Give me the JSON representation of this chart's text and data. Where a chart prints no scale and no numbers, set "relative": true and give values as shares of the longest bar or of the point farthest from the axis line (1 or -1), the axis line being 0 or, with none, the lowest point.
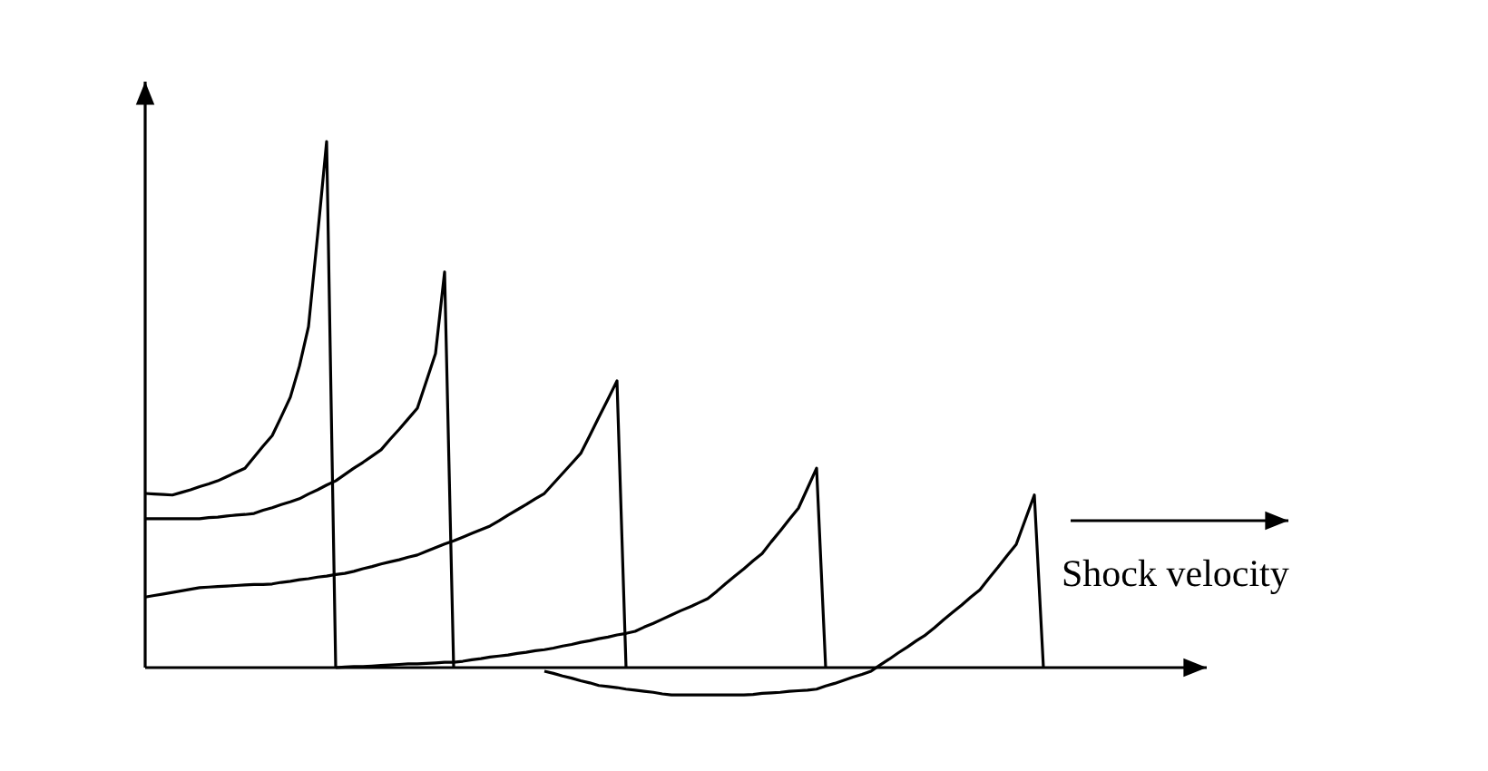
{
  "chart_data": {
    "type": "line",
    "relative": true,
    "xlabel": "Shock velocity",
    "line_style": "solid",
    "categories": [
      null,
      null,
      null,
      null,
      null,
      null,
      null,
      null,
      null,
      null,
      null,
      null,
      null,
      null,
      null,
      null,
      null,
      null,
      null,
      null,
      null,
      null,
      null,
      null,
      null,
      null,
      null,
      null,
      null,
      null,
      null,
      null,
      null,
      null,
      null,
      null,
      null,
      null,
      null,
      null,
      null,
      null,
      null,
      null,
      null,
      null,
      null,
      null,
      null,
      null,
      null,
      null,
      null,
      null,
      null,
      null,
      null,
      null,
      null,
      null,
      null,
      null,
      null,
      null,
      null,
      null,
      null,
      null,
      null,
      null,
      null,
      null,
      null,
      null,
      null,
      null,
      null,
      null,
      null,
      null,
      null,
      null,
      null,
      null,
      null,
      null,
      null,
      null,
      null,
      null,
      null,
      null,
      null,
      null,
      null,
      null,
      null,
      null,
      null,
      null,
      null,
      null,
      null,
      null,
      null,
      null,
      null,
      null,
      null,
      null,
      null,
      null,
      null,
      null,
      null,
      null,
      null,
      null
    ],
    "series": [
      {
        "color": "#000000",
        "values": [
          0.331,
          0.33,
          0.329,
          0.328,
          0.333,
          0.338,
          0.344,
          0.349,
          0.355,
          0.363,
          0.371,
          0.379,
          0.4,
          0.421,
          0.441,
          0.477,
          0.514,
          0.573,
          0.648,
          0.821,
          1.0,
          0,
          null,
          null,
          null,
          null,
          null,
          null,
          null,
          null,
          null,
          null,
          null,
          null,
          null,
          null,
          null,
          null,
          null,
          null,
          null,
          null,
          null,
          null,
          null,
          null,
          null,
          null,
          null,
          null,
          null,
          null,
          null,
          null,
          null,
          null,
          null,
          null,
          null,
          null,
          null,
          null,
          null,
          null,
          null,
          null,
          null,
          null,
          null,
          null,
          null,
          null,
          null,
          null,
          null,
          null,
          null,
          null,
          null,
          null,
          null,
          null,
          null,
          null,
          null,
          null,
          null,
          null,
          null,
          null,
          null,
          null,
          null,
          null,
          null,
          null,
          null,
          null,
          null,
          null,
          null,
          null,
          null,
          null,
          null,
          null,
          null,
          null,
          null,
          null,
          null,
          null,
          null,
          null,
          null,
          null,
          null,
          null
        ]
      },
      {
        "color": "#000000",
        "values": [
          0.283,
          0.283,
          0.283,
          0.283,
          0.283,
          0.283,
          0.283,
          0.285,
          0.286,
          0.288,
          0.29,
          0.291,
          0.293,
          0.299,
          0.304,
          0.31,
          0.315,
          0.321,
          0.33,
          0.338,
          0.347,
          0.355,
          0.367,
          0.379,
          0.39,
          0.402,
          0.414,
          0.434,
          0.453,
          0.473,
          0.493,
          0.545,
          0.597,
          0.752,
          0,
          null,
          null,
          null,
          null,
          null,
          null,
          null,
          null,
          null,
          null,
          null,
          null,
          null,
          null,
          null,
          null,
          null,
          null,
          null,
          null,
          null,
          null,
          null,
          null,
          null,
          null,
          null,
          null,
          null,
          null,
          null,
          null,
          null,
          null,
          null,
          null,
          null,
          null,
          null,
          null,
          null,
          null,
          null,
          null,
          null,
          null,
          null,
          null,
          null,
          null,
          null,
          null,
          null,
          null,
          null,
          null,
          null,
          null,
          null,
          null,
          null,
          null,
          null,
          null,
          null,
          null,
          null,
          null,
          null,
          null,
          null,
          null,
          null,
          null,
          null,
          null,
          null,
          null,
          null,
          null,
          null,
          null,
          null
        ]
      },
      {
        "color": "#000000",
        "values": [
          0.134,
          0.137,
          0.14,
          0.143,
          0.146,
          0.149,
          0.152,
          0.153,
          0.154,
          0.155,
          0.156,
          0.157,
          0.158,
          0.158,
          0.159,
          0.162,
          0.164,
          0.167,
          0.169,
          0.172,
          0.174,
          0.177,
          0.179,
          0.183,
          0.188,
          0.192,
          0.197,
          0.201,
          0.205,
          0.21,
          0.214,
          0.221,
          0.228,
          0.235,
          0.241,
          0.248,
          0.255,
          0.262,
          0.269,
          0.279,
          0.29,
          0.3,
          0.31,
          0.321,
          0.331,
          0.35,
          0.369,
          0.388,
          0.407,
          0.441,
          0.476,
          0.51,
          0.545,
          0,
          null,
          null,
          null,
          null,
          null,
          null,
          null,
          null,
          null,
          null,
          null,
          null,
          null,
          null,
          null,
          null,
          null,
          null,
          null,
          null,
          null,
          null,
          null,
          null,
          null,
          null,
          null,
          null,
          null,
          null,
          null,
          null,
          null,
          null,
          null,
          null,
          null,
          null,
          null,
          null,
          null,
          null,
          null,
          null,
          null,
          null,
          null,
          null,
          null,
          null,
          null,
          null,
          null,
          null,
          null,
          null,
          null,
          null,
          null,
          null,
          null,
          null,
          null,
          null
        ]
      },
      {
        "color": "#000000",
        "values": [
          null,
          null,
          null,
          null,
          null,
          null,
          null,
          null,
          null,
          null,
          null,
          null,
          null,
          null,
          null,
          null,
          null,
          null,
          null,
          null,
          null,
          0,
          0.001,
          0.002,
          0.002,
          0.003,
          0.004,
          0.005,
          0.006,
          0.007,
          0.007,
          0.008,
          0.009,
          0.01,
          0.01,
          0.012,
          0.015,
          0.017,
          0.02,
          0.022,
          0.024,
          0.027,
          0.029,
          0.032,
          0.034,
          0.037,
          0.041,
          0.044,
          0.048,
          0.051,
          0.055,
          0.058,
          0.062,
          0.065,
          0.069,
          0.077,
          0.084,
          0.092,
          0.1,
          0.108,
          0.115,
          0.123,
          0.131,
          0.145,
          0.16,
          0.174,
          0.188,
          0.203,
          0.217,
          0.239,
          0.26,
          0.282,
          0.303,
          0.341,
          0.379,
          0,
          null,
          null,
          null,
          null,
          null,
          null,
          null,
          null,
          null,
          null,
          null,
          null,
          null,
          null,
          null,
          null,
          null,
          null,
          null,
          null,
          null,
          null,
          null,
          null,
          null,
          null,
          null,
          null,
          null,
          null,
          null,
          null,
          null,
          null,
          null,
          null,
          null,
          null,
          null,
          null,
          null,
          null
        ]
      },
      {
        "color": "#000000",
        "values": [
          null,
          null,
          null,
          null,
          null,
          null,
          null,
          null,
          null,
          null,
          null,
          null,
          null,
          null,
          null,
          null,
          null,
          null,
          null,
          null,
          null,
          null,
          null,
          null,
          null,
          null,
          null,
          null,
          null,
          null,
          null,
          null,
          null,
          null,
          null,
          null,
          null,
          null,
          null,
          null,
          null,
          null,
          null,
          null,
          -0.007,
          -0.011,
          -0.016,
          -0.02,
          -0.025,
          -0.029,
          -0.034,
          -0.036,
          -0.038,
          -0.041,
          -0.043,
          -0.045,
          -0.047,
          -0.05,
          -0.052,
          -0.052,
          -0.052,
          -0.052,
          -0.052,
          -0.052,
          -0.052,
          -0.052,
          -0.052,
          -0.051,
          -0.049,
          -0.048,
          -0.047,
          -0.045,
          -0.044,
          -0.043,
          -0.041,
          -0.035,
          -0.03,
          -0.024,
          -0.018,
          -0.013,
          -0.007,
          0.005,
          0.016,
          0.028,
          0.039,
          0.051,
          0.062,
          0.076,
          0.091,
          0.105,
          0.119,
          0.134,
          0.148,
          0.17,
          0.191,
          0.213,
          0.234,
          0.281,
          0.328,
          0,
          null,
          null,
          null,
          null,
          null,
          null,
          null,
          null,
          null,
          null,
          null,
          null,
          null,
          null,
          null,
          null,
          null,
          null
        ]
      }
    ]
  }
}
